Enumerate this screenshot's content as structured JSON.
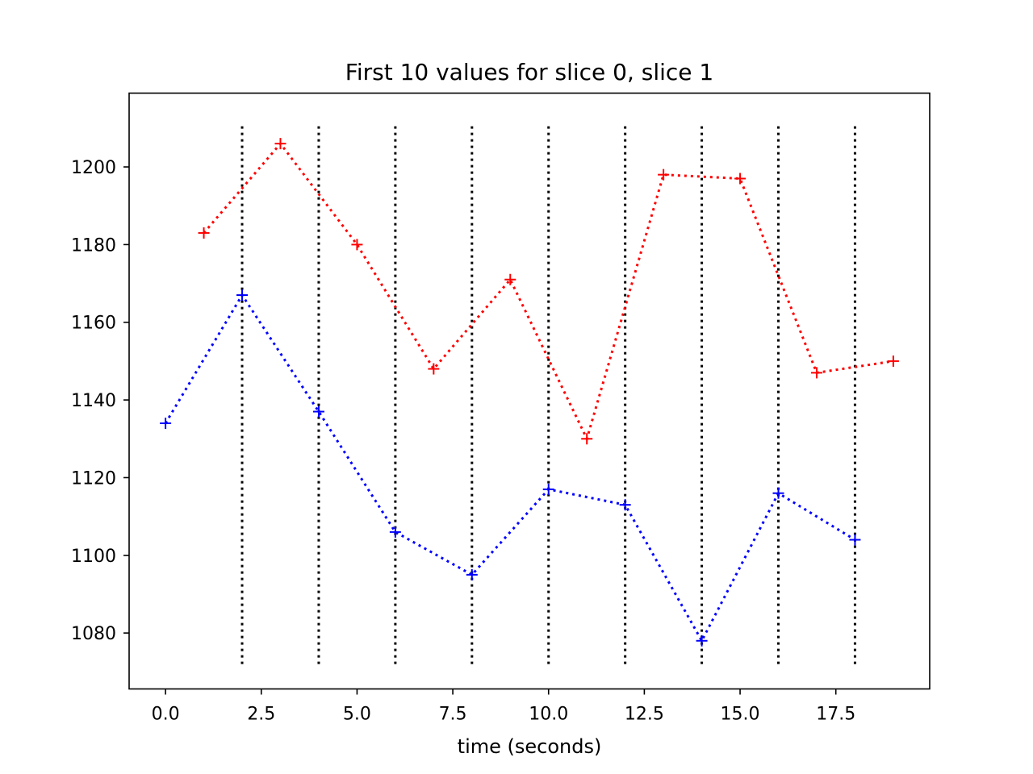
{
  "chart_data": {
    "type": "line",
    "title": "First 10 values for slice 0, slice 1",
    "xlabel": "time (seconds)",
    "ylabel": "",
    "xlim": [
      -0.95,
      19.95
    ],
    "ylim": [
      1065.6,
      1219.0
    ],
    "x_ticks": [
      0.0,
      2.5,
      5.0,
      7.5,
      10.0,
      12.5,
      15.0,
      17.5
    ],
    "x_tick_labels": [
      "0.0",
      "2.5",
      "5.0",
      "7.5",
      "10.0",
      "12.5",
      "15.0",
      "17.5"
    ],
    "y_ticks": [
      1080,
      1100,
      1120,
      1140,
      1160,
      1180,
      1200
    ],
    "y_tick_labels": [
      "1080",
      "1100",
      "1120",
      "1140",
      "1160",
      "1180",
      "1200"
    ],
    "grid": false,
    "legend": "none",
    "series": [
      {
        "color": "#0000ff",
        "style": "dotted",
        "marker": "+",
        "x": [
          0,
          2,
          4,
          6,
          8,
          10,
          12,
          14,
          16,
          18
        ],
        "y": [
          1134,
          1167,
          1137,
          1106,
          1095,
          1117,
          1113,
          1078,
          1116,
          1104
        ]
      },
      {
        "color": "#ff0000",
        "style": "dotted",
        "marker": "+",
        "x": [
          1,
          3,
          5,
          7,
          9,
          11,
          13,
          15,
          17,
          19
        ],
        "y": [
          1183,
          1206,
          1180,
          1148,
          1171,
          1130,
          1198,
          1197,
          1147,
          1150
        ]
      }
    ],
    "vlines": {
      "color": "#000000",
      "style": "dotted",
      "x": [
        2,
        4,
        6,
        8,
        10,
        12,
        14,
        16,
        18
      ],
      "ymin": 1072,
      "ymax": 1211
    }
  }
}
